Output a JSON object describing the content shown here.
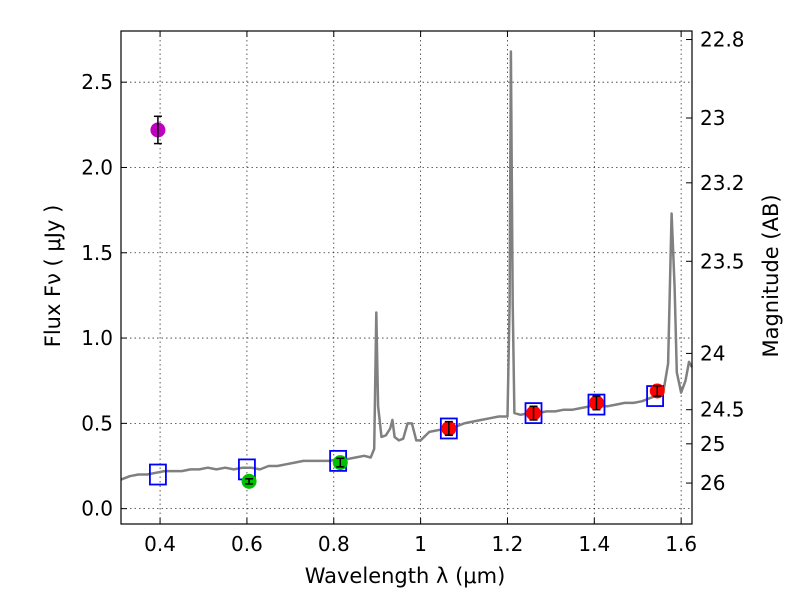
{
  "chart_data": {
    "type": "scatter",
    "xlabel": "Wavelength  λ (μm)",
    "ylabel": "Flux  Fν  ( μJy )",
    "y2label": "Magnitude (AB)",
    "xlim": [
      0.31,
      1.625
    ],
    "ylim": [
      -0.09,
      2.8
    ],
    "grid": true,
    "x_ticks": [
      0.4,
      0.6,
      0.8,
      1.0,
      1.2,
      1.4,
      1.6
    ],
    "x_tick_labels": [
      "0.4",
      "0.6",
      "0.8",
      "1",
      "1.2",
      "1.4",
      "1.6"
    ],
    "y_ticks": [
      0.0,
      0.5,
      1.0,
      1.5,
      2.0,
      2.5
    ],
    "y_tick_labels": [
      "0.0",
      "0.5",
      "1.0",
      "1.5",
      "2.0",
      "2.5"
    ],
    "mag_ticks": [
      {
        "label": "22.8",
        "flux": 2.75
      },
      {
        "label": "23",
        "flux": 2.29
      },
      {
        "label": "23.2",
        "flux": 1.91
      },
      {
        "label": "23.5",
        "flux": 1.45
      },
      {
        "label": "24",
        "flux": 0.91
      },
      {
        "label": "24.5",
        "flux": 0.58
      },
      {
        "label": "25",
        "flux": 0.38
      },
      {
        "label": "26",
        "flux": 0.15
      }
    ],
    "model_spectrum": {
      "color": "#808080",
      "points": [
        [
          0.31,
          0.17
        ],
        [
          0.33,
          0.19
        ],
        [
          0.35,
          0.2
        ],
        [
          0.37,
          0.2
        ],
        [
          0.39,
          0.21
        ],
        [
          0.41,
          0.22
        ],
        [
          0.43,
          0.22
        ],
        [
          0.45,
          0.22
        ],
        [
          0.47,
          0.23
        ],
        [
          0.49,
          0.23
        ],
        [
          0.51,
          0.24
        ],
        [
          0.53,
          0.23
        ],
        [
          0.55,
          0.24
        ],
        [
          0.57,
          0.23
        ],
        [
          0.59,
          0.24
        ],
        [
          0.61,
          0.24
        ],
        [
          0.63,
          0.23
        ],
        [
          0.65,
          0.25
        ],
        [
          0.67,
          0.25
        ],
        [
          0.69,
          0.26
        ],
        [
          0.71,
          0.27
        ],
        [
          0.73,
          0.28
        ],
        [
          0.75,
          0.28
        ],
        [
          0.77,
          0.28
        ],
        [
          0.79,
          0.28
        ],
        [
          0.81,
          0.29
        ],
        [
          0.83,
          0.29
        ],
        [
          0.85,
          0.3
        ],
        [
          0.87,
          0.31
        ],
        [
          0.885,
          0.3
        ],
        [
          0.893,
          0.35
        ],
        [
          0.898,
          1.15
        ],
        [
          0.902,
          0.6
        ],
        [
          0.91,
          0.42
        ],
        [
          0.92,
          0.43
        ],
        [
          0.93,
          0.47
        ],
        [
          0.935,
          0.52
        ],
        [
          0.94,
          0.42
        ],
        [
          0.95,
          0.4
        ],
        [
          0.96,
          0.41
        ],
        [
          0.97,
          0.5
        ],
        [
          0.98,
          0.5
        ],
        [
          0.99,
          0.4
        ],
        [
          1.0,
          0.4
        ],
        [
          1.02,
          0.45
        ],
        [
          1.04,
          0.46
        ],
        [
          1.06,
          0.47
        ],
        [
          1.08,
          0.48
        ],
        [
          1.1,
          0.5
        ],
        [
          1.12,
          0.51
        ],
        [
          1.14,
          0.52
        ],
        [
          1.16,
          0.53
        ],
        [
          1.18,
          0.54
        ],
        [
          1.2,
          0.54
        ],
        [
          1.205,
          1.2
        ],
        [
          1.208,
          2.68
        ],
        [
          1.212,
          1.2
        ],
        [
          1.216,
          0.56
        ],
        [
          1.23,
          0.55
        ],
        [
          1.25,
          0.56
        ],
        [
          1.27,
          0.56
        ],
        [
          1.29,
          0.57
        ],
        [
          1.31,
          0.57
        ],
        [
          1.33,
          0.58
        ],
        [
          1.35,
          0.58
        ],
        [
          1.37,
          0.59
        ],
        [
          1.39,
          0.6
        ],
        [
          1.41,
          0.6
        ],
        [
          1.43,
          0.6
        ],
        [
          1.45,
          0.61
        ],
        [
          1.47,
          0.62
        ],
        [
          1.49,
          0.62
        ],
        [
          1.51,
          0.63
        ],
        [
          1.53,
          0.65
        ],
        [
          1.55,
          0.67
        ],
        [
          1.56,
          0.7
        ],
        [
          1.57,
          0.85
        ],
        [
          1.578,
          1.73
        ],
        [
          1.585,
          1.3
        ],
        [
          1.59,
          0.8
        ],
        [
          1.6,
          0.68
        ],
        [
          1.61,
          0.75
        ],
        [
          1.618,
          0.86
        ],
        [
          1.625,
          0.83
        ]
      ]
    },
    "model_photometry": {
      "marker": "open-square",
      "color": "#0000ff",
      "points": [
        {
          "x": 0.395,
          "y": 0.2
        },
        {
          "x": 0.6,
          "y": 0.23
        },
        {
          "x": 0.81,
          "y": 0.28
        },
        {
          "x": 1.065,
          "y": 0.47
        },
        {
          "x": 1.26,
          "y": 0.56
        },
        {
          "x": 1.405,
          "y": 0.61
        },
        {
          "x": 1.54,
          "y": 0.66
        }
      ]
    },
    "observed_photometry": [
      {
        "x": 0.395,
        "y": 2.22,
        "err": 0.08,
        "color": "#bf00bf"
      },
      {
        "x": 0.605,
        "y": 0.16,
        "err": 0.015,
        "color": "#00c000"
      },
      {
        "x": 0.815,
        "y": 0.27,
        "err": 0.025,
        "color": "#00c000"
      },
      {
        "x": 1.065,
        "y": 0.47,
        "err": 0.04,
        "color": "#ff0000"
      },
      {
        "x": 1.26,
        "y": 0.56,
        "err": 0.04,
        "color": "#ff0000"
      },
      {
        "x": 1.405,
        "y": 0.62,
        "err": 0.04,
        "color": "#ff0000"
      },
      {
        "x": 1.545,
        "y": 0.69,
        "err": 0.03,
        "color": "#ff0000"
      }
    ]
  }
}
